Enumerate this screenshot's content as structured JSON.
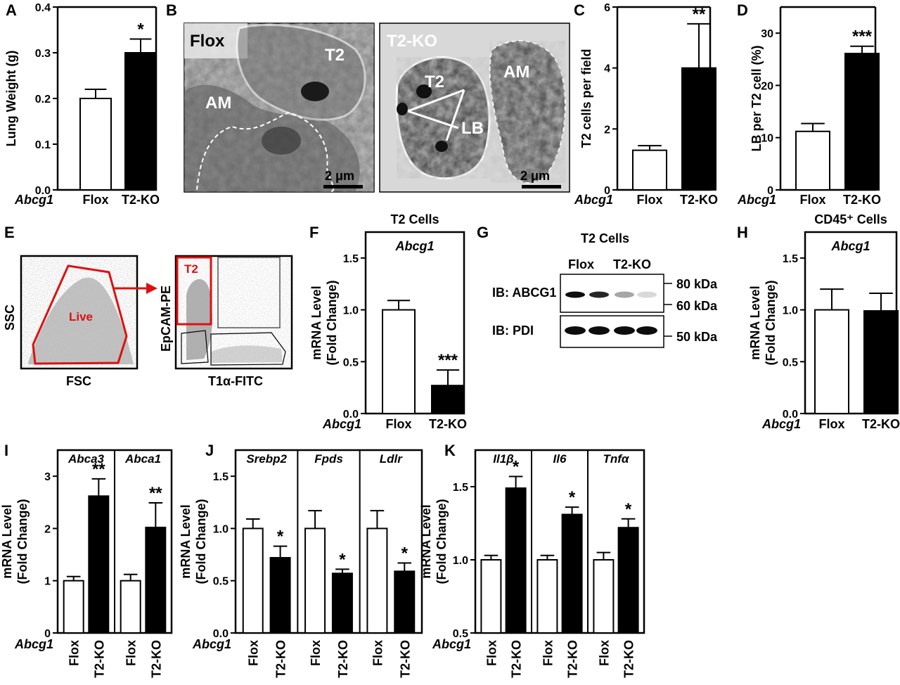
{
  "panels": {
    "A": "A",
    "B": "B",
    "C": "C",
    "D": "D",
    "E": "E",
    "F": "F",
    "G": "G",
    "H": "H",
    "I": "I",
    "J": "J",
    "K": "K"
  },
  "row_label": "Abcg1",
  "em_images": {
    "flox": {
      "label": "Flox",
      "cells": [
        "T2",
        "AM"
      ],
      "scale": "2 μm"
    },
    "ko": {
      "label": "T2-KO",
      "cells": [
        "T2",
        "AM",
        "LB"
      ],
      "scale": "2 μm"
    }
  },
  "facs": {
    "plot1": {
      "xlabel": "FSC",
      "ylabel": "SSC",
      "gate": "Live"
    },
    "plot2": {
      "xlabel": "T1α-FITC",
      "ylabel": "EpCAM-PE",
      "gate": "T2"
    }
  },
  "western": {
    "title": "T2 Cells",
    "groups": [
      "Flox",
      "T2-KO"
    ],
    "rows": [
      "IB: ABCG1",
      "IB: PDI"
    ],
    "markers": [
      "80 kDa",
      "60 kDa",
      "50 kDa"
    ],
    "abcg1_band_intensity": [
      0.95,
      0.85,
      0.35,
      0.15
    ],
    "pdi_band_intensity": [
      0.95,
      0.95,
      0.95,
      0.95
    ]
  },
  "colors": {
    "flox": "#ffffff",
    "ko": "#000000",
    "gate": "#dd1111"
  },
  "chart_data": [
    {
      "id": "A",
      "type": "bar",
      "categories": [
        "Flox",
        "T2-KO"
      ],
      "values": [
        0.2,
        0.3
      ],
      "errors": [
        0.02,
        0.03
      ],
      "significance": [
        "",
        "*"
      ],
      "ylabel": "Lung Weight (g)",
      "ylim": [
        0,
        0.4
      ],
      "yticks": [
        "0.0",
        "0.1",
        "0.2",
        "0.3",
        "0.4"
      ]
    },
    {
      "id": "C",
      "type": "bar",
      "categories": [
        "Flox",
        "T2-KO"
      ],
      "values": [
        1.3,
        4.0
      ],
      "errors": [
        0.15,
        1.45
      ],
      "significance": [
        "",
        "**"
      ],
      "ylabel": "T2 cells per field",
      "ylim": [
        0,
        6
      ],
      "yticks": [
        "0",
        "2",
        "4",
        "6"
      ]
    },
    {
      "id": "D",
      "type": "bar",
      "categories": [
        "Flox",
        "T2-KO"
      ],
      "values": [
        11.2,
        26.1
      ],
      "errors": [
        1.5,
        1.4
      ],
      "significance": [
        "",
        "***"
      ],
      "ylabel": "LB per T2 cell (%)",
      "ylim": [
        0,
        35
      ],
      "yticks": [
        "0",
        "10",
        "20",
        "30"
      ]
    },
    {
      "id": "F",
      "type": "bar",
      "title": "T2 Cells",
      "gene": "Abcg1",
      "categories": [
        "Flox",
        "T2-KO"
      ],
      "values": [
        1.0,
        0.27
      ],
      "errors": [
        0.09,
        0.15
      ],
      "significance": [
        "",
        "***"
      ],
      "ylabel": [
        "mRNA Level",
        "(Fold Change)"
      ],
      "ylim": [
        0,
        1.75
      ],
      "yticks": [
        "0.0",
        "0.5",
        "1.0",
        "1.5"
      ]
    },
    {
      "id": "H",
      "type": "bar",
      "title": "CD45⁺ Cells",
      "gene": "Abcg1",
      "categories": [
        "Flox",
        "T2-KO"
      ],
      "values": [
        1.0,
        0.99
      ],
      "errors": [
        0.2,
        0.17
      ],
      "significance": [
        "",
        ""
      ],
      "ylabel": [
        "mRNA Level",
        "(Fold Change)"
      ],
      "ylim": [
        0,
        1.75
      ],
      "yticks": [
        "0.0",
        "0.5",
        "1.0",
        "1.5"
      ]
    },
    {
      "id": "I",
      "type": "bar",
      "genes": [
        "Abca3",
        "Abca1"
      ],
      "categories": [
        "Flox",
        "T2-KO"
      ],
      "values": [
        [
          1.0,
          2.62
        ],
        [
          1.0,
          2.02
        ]
      ],
      "errors": [
        [
          0.08,
          0.33
        ],
        [
          0.12,
          0.47
        ]
      ],
      "significance": [
        [
          "",
          "**"
        ],
        [
          "",
          "**"
        ]
      ],
      "ylabel": [
        "mRNA Level",
        "(Fold Change)"
      ],
      "ylim": [
        0,
        3.5
      ],
      "yticks": [
        "0",
        "1",
        "2",
        "3"
      ]
    },
    {
      "id": "J",
      "type": "bar",
      "genes": [
        "Srebp2",
        "Fpds",
        "Ldlr"
      ],
      "categories": [
        "Flox",
        "T2-KO"
      ],
      "values": [
        [
          1.0,
          0.72
        ],
        [
          1.0,
          0.57
        ],
        [
          1.0,
          0.59
        ]
      ],
      "errors": [
        [
          0.09,
          0.11
        ],
        [
          0.17,
          0.04
        ],
        [
          0.17,
          0.08
        ]
      ],
      "significance": [
        [
          "",
          "*"
        ],
        [
          "",
          "*"
        ],
        [
          "",
          "*"
        ]
      ],
      "ylabel": [
        "mRNA Level",
        "(Fold Change)"
      ],
      "ylim": [
        0,
        1.75
      ],
      "yticks": [
        "0.0",
        "0.5",
        "1.0",
        "1.5"
      ]
    },
    {
      "id": "K",
      "type": "bar",
      "genes": [
        "Il1β",
        "Il6",
        "Tnfα"
      ],
      "categories": [
        "Flox",
        "T2-KO"
      ],
      "values": [
        [
          1.0,
          1.49
        ],
        [
          1.0,
          1.31
        ],
        [
          1.0,
          1.22
        ]
      ],
      "errors": [
        [
          0.03,
          0.08
        ],
        [
          0.03,
          0.05
        ],
        [
          0.05,
          0.06
        ]
      ],
      "significance": [
        [
          "",
          "*"
        ],
        [
          "",
          "*"
        ],
        [
          "",
          "*"
        ]
      ],
      "ylabel": [
        "mRNA Level",
        "(Fold Change)"
      ],
      "ylim": [
        0.5,
        1.75
      ],
      "yticks": [
        "0.5",
        "1.0",
        "1.5"
      ]
    }
  ]
}
